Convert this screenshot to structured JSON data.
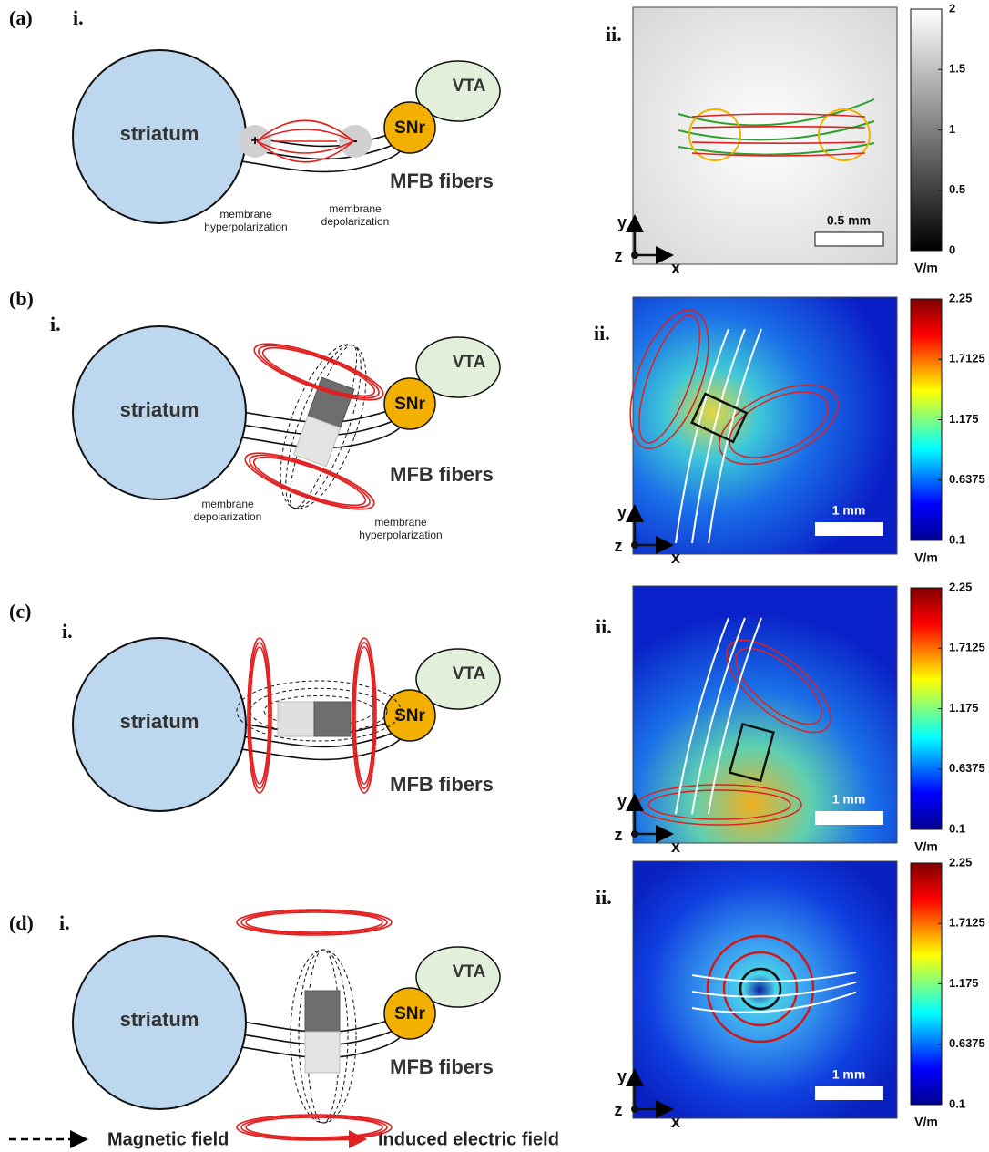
{
  "panels": [
    {
      "label": "(a)",
      "left": {
        "label": "i.",
        "striatum": "striatum",
        "vta": "VTA",
        "snr": "SNr",
        "fibers": "MFB fibers",
        "charges": [
          "+",
          "-"
        ],
        "annotations": [
          "membrane hyperpolarization",
          "membrane depolarization"
        ]
      },
      "right": {
        "label": "ii.",
        "scale_bar": "0.5 mm",
        "axes": {
          "x": "x",
          "y": "y",
          "z": "z"
        },
        "colorbar": {
          "ticks": [
            2,
            1.5,
            1,
            0.5,
            0
          ],
          "unit": "V/m"
        }
      }
    },
    {
      "label": "(b)",
      "left": {
        "label": "i.",
        "striatum": "striatum",
        "vta": "VTA",
        "snr": "SNr",
        "fibers": "MFB fibers",
        "annotations": [
          "membrane depolarization",
          "membrane hyperpolarization"
        ]
      },
      "right": {
        "label": "ii.",
        "scale_bar": "1 mm",
        "axes": {
          "x": "x",
          "y": "y",
          "z": "z"
        },
        "colorbar": {
          "ticks": [
            2.25,
            1.7125,
            1.175,
            0.6375,
            0.1
          ],
          "unit": "V/m"
        }
      }
    },
    {
      "label": "(c)",
      "left": {
        "label": "i.",
        "striatum": "striatum",
        "vta": "VTA",
        "snr": "SNr",
        "fibers": "MFB fibers"
      },
      "right": {
        "label": "ii.",
        "scale_bar": "1 mm",
        "axes": {
          "x": "x",
          "y": "y",
          "z": "z"
        },
        "colorbar": {
          "ticks": [
            2.25,
            1.7125,
            1.175,
            0.6375,
            0.1
          ],
          "unit": "V/m"
        }
      }
    },
    {
      "label": "(d)",
      "left": {
        "label": "i.",
        "striatum": "striatum",
        "vta": "VTA",
        "snr": "SNr",
        "fibers": "MFB fibers"
      },
      "right": {
        "label": "ii.",
        "scale_bar": "1 mm",
        "axes": {
          "x": "x",
          "y": "y",
          "z": "z"
        },
        "colorbar": {
          "ticks": [
            2.25,
            1.7125,
            1.175,
            0.6375,
            0.1
          ],
          "unit": "V/m"
        }
      }
    }
  ],
  "legend": [
    {
      "label": "Magnetic field"
    },
    {
      "label": "Induced electric field"
    }
  ]
}
